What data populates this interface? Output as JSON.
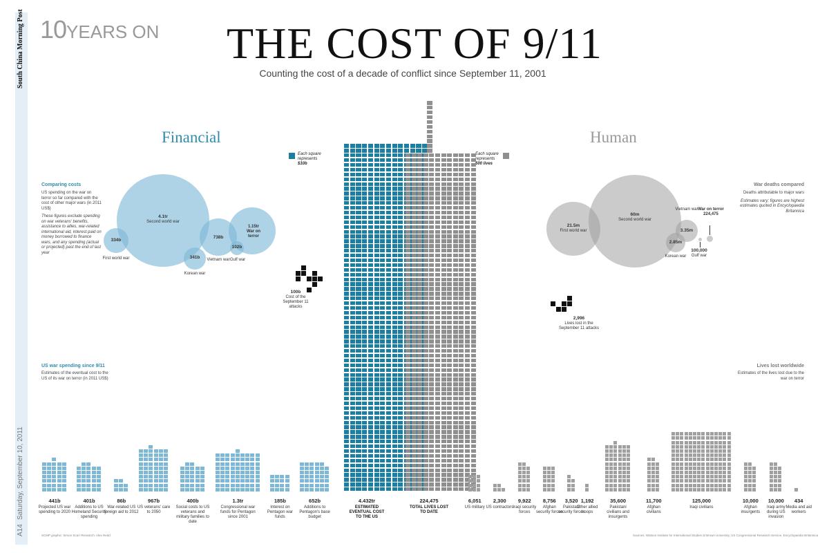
{
  "masthead": {
    "paper": "South China Morning Post",
    "date": "Saturday, September 10, 2011",
    "page": "A14"
  },
  "header": {
    "kicker_num": "10",
    "kicker_text": "YEARS ON",
    "title": "THE COST OF 9/11",
    "subtitle": "Counting the cost of a decade of conflict since September 11, 2001"
  },
  "colors": {
    "financial": "#1c7fa2",
    "human": "#8f8f8f",
    "financial_light": "#7eb8d7",
    "human_light": "#a0a0a0",
    "sidebar": "#e3eef6"
  },
  "financial": {
    "heading": "Financial",
    "legend": {
      "line1": "Each square",
      "line2": "represents",
      "value": "$10b",
      "square_value_billion": 10
    },
    "comparing": {
      "title": "Comparing costs",
      "text1": "US spending on the war on terror so far compared with the cost of other major wars (in 2011 US$)",
      "text2": "These figures exclude spending on war veterans' benefits, assistance to allies, war-related international aid, interest paid on money borrowed to finance wars, and any spending (actual or projected) past the end of last year",
      "circles": [
        {
          "value": "4.1tr",
          "label": "Second world war",
          "amount_billion": 4100
        },
        {
          "value": "334b",
          "label": "First world war",
          "amount_billion": 334
        },
        {
          "value": "341b",
          "label": "Korean war",
          "amount_billion": 341
        },
        {
          "value": "738b",
          "label": "Vietnam war",
          "amount_billion": 738
        },
        {
          "value": "102b",
          "label": "Gulf war",
          "amount_billion": 102
        },
        {
          "value": "1.15tr",
          "label": "War on terror",
          "amount_billion": 1150
        }
      ]
    },
    "attacks": {
      "value": "100b",
      "label": "Cost of the September 11 attacks",
      "squares": 10
    },
    "spending": {
      "title": "US war spending since 9/11",
      "text": "Estimates of the eventual cost to the US of its war on terror (in 2011 US$)",
      "bars": [
        {
          "value": "441b",
          "label": "Projected US war spending to 2020",
          "squares": 44
        },
        {
          "value": "401b",
          "label": "Additions to US Homeland Security spending",
          "squares": 40
        },
        {
          "value": "86b",
          "label": "War-related US foreign aid to 2012",
          "squares": 9
        },
        {
          "value": "967b",
          "label": "US veterans' care to 2050",
          "squares": 97
        },
        {
          "value": "400b",
          "label": "Social costs to US veterans and military families to date",
          "squares": 40
        },
        {
          "value": "1.3tr",
          "label": "Congressional war funds for Pentagon since 2001",
          "squares": 130
        },
        {
          "value": "185b",
          "label": "Interest on Pentagon war funds",
          "squares": 19
        },
        {
          "value": "652b",
          "label": "Additions to Pentagon's base budget",
          "squares": 65
        }
      ]
    },
    "tower": {
      "value": "4.432tr",
      "label": "ESTIMATED EVENTUAL COST TO THE US",
      "squares": 443
    }
  },
  "human": {
    "heading": "Human",
    "legend": {
      "line1": "Each square",
      "line2": "represents",
      "value": "500 lives",
      "square_value_lives": 500
    },
    "deaths_compared": {
      "title": "War deaths compared",
      "text1": "Deaths attributable to major wars",
      "text2": "Estimates vary; figures are highest estimates quoted in Encyclopaedia Britannica",
      "circles": [
        {
          "value": "60m",
          "label": "Second world war",
          "deaths": 60000000
        },
        {
          "value": "21.5m",
          "label": "First world war",
          "deaths": 21500000
        },
        {
          "value": "3.35m",
          "label": "Vietnam war",
          "deaths": 3350000
        },
        {
          "value": "2.85m",
          "label": "Korean war",
          "deaths": 2850000
        },
        {
          "value": "100,000",
          "label": "Gulf war",
          "deaths": 100000
        },
        {
          "value": "224,475",
          "label": "War on terror",
          "deaths": 224475
        }
      ]
    },
    "attacks": {
      "value": "2,996",
      "label": "Lives lost in the September 11 attacks",
      "squares": 6
    },
    "worldwide": {
      "title": "Lives lost worldwide",
      "text": "Estimates of the lives lost due to the war on terror",
      "bars": [
        {
          "value": "6,051",
          "label": "US military",
          "squares": 12
        },
        {
          "value": "2,300",
          "label": "US contractors",
          "squares": 5
        },
        {
          "value": "9,922",
          "label": "Iraqi security forces",
          "squares": 20
        },
        {
          "value": "8,756",
          "label": "Afghan security forces",
          "squares": 18
        },
        {
          "value": "3,520",
          "label": "Pakistani security forces",
          "squares": 7
        },
        {
          "value": "1,192",
          "label": "Other allied troops",
          "squares": 2
        },
        {
          "value": "35,600",
          "label": "Pakistani civilians and insurgents",
          "squares": 71
        },
        {
          "value": "11,700",
          "label": "Afghan civilians",
          "squares": 23
        },
        {
          "value": "125,000",
          "label": "Iraqi civilians",
          "squares": 250
        },
        {
          "value": "10,000",
          "label": "Afghan insurgents",
          "squares": 20
        },
        {
          "value": "10,000",
          "label": "Iraqi army during US invasion",
          "squares": 20
        },
        {
          "value": "434",
          "label": "Media and aid workers",
          "squares": 1
        }
      ]
    },
    "tower": {
      "value": "224,475",
      "label": "TOTAL LIVES LOST TO DATE",
      "squares": 449
    }
  },
  "credits": {
    "left": "SCMP graphic: Simon Scarr      Research: Alex Redd",
    "right": "Sources: Watson Institute for International Studies at Brown University, US Congressional Research Service, Encyclopaedia Britannica"
  }
}
